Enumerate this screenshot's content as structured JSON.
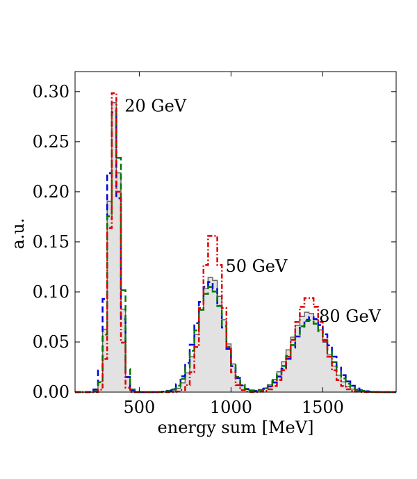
{
  "chart_data": {
    "type": "histogram",
    "title": "",
    "xlabel": "energy sum [MeV]",
    "ylabel": "a.u.",
    "xlim": [
      150,
      1900
    ],
    "ylim": [
      0,
      0.32
    ],
    "xticks": [
      500,
      1000,
      1500
    ],
    "xtick_labels": [
      "500",
      "1000",
      "1500"
    ],
    "yticks": [
      0.0,
      0.05,
      0.1,
      0.15,
      0.2,
      0.25,
      0.3
    ],
    "ytick_labels": [
      "0.00",
      "0.05",
      "0.10",
      "0.15",
      "0.20",
      "0.25",
      "0.30"
    ],
    "grid": false,
    "bin_width": 25,
    "annotations": [
      {
        "text": "20 GeV",
        "x": 420,
        "y": 0.28
      },
      {
        "text": "50 GeV",
        "x": 970,
        "y": 0.12
      },
      {
        "text": "80 GeV",
        "x": 1480,
        "y": 0.07
      }
    ],
    "series": [
      {
        "name": "reference (filled)",
        "style": "filled-step",
        "color": "#666666",
        "fill": "#e2e2e2",
        "peaks": [
          {
            "label": "20 GeV",
            "center": 365,
            "height": 0.29,
            "sigma": 30
          },
          {
            "label": "50 GeV",
            "center": 895,
            "height": 0.115,
            "sigma": 70
          },
          {
            "label": "80 GeV",
            "center": 1420,
            "height": 0.08,
            "sigma": 95
          }
        ]
      },
      {
        "name": "dashed blue",
        "style": "dashed",
        "color": "#0000dd",
        "peaks": [
          {
            "label": "20 GeV",
            "center": 360,
            "height": 0.28,
            "sigma": 32
          },
          {
            "label": "50 GeV",
            "center": 885,
            "height": 0.11,
            "sigma": 75
          },
          {
            "label": "80 GeV",
            "center": 1440,
            "height": 0.075,
            "sigma": 100
          }
        ]
      },
      {
        "name": "dashed green",
        "style": "dashed",
        "color": "#007700",
        "peaks": [
          {
            "label": "20 GeV",
            "center": 368,
            "height": 0.285,
            "sigma": 31
          },
          {
            "label": "50 GeV",
            "center": 890,
            "height": 0.105,
            "sigma": 75
          },
          {
            "label": "80 GeV",
            "center": 1430,
            "height": 0.072,
            "sigma": 100
          }
        ]
      },
      {
        "name": "dash-dot red",
        "style": "dashdot",
        "color": "#dd0000",
        "peaks": [
          {
            "label": "20 GeV",
            "center": 365,
            "height": 0.3,
            "sigma": 25
          },
          {
            "label": "50 GeV",
            "center": 900,
            "height": 0.16,
            "sigma": 55
          },
          {
            "label": "80 GeV",
            "center": 1425,
            "height": 0.095,
            "sigma": 80
          }
        ]
      }
    ]
  }
}
